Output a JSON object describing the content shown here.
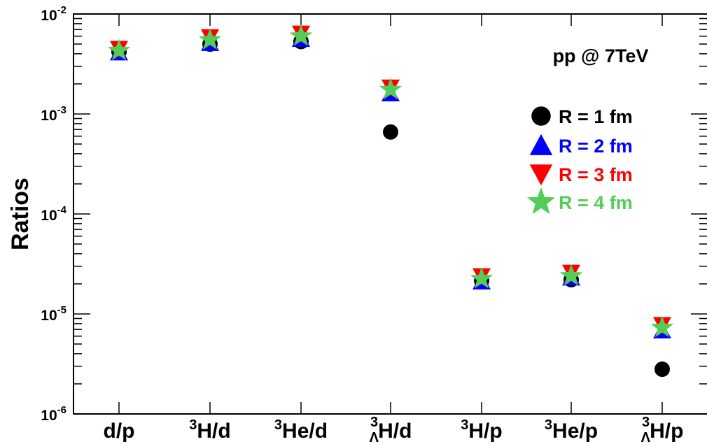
{
  "chart_data": {
    "type": "scatter",
    "title": "",
    "xlabel": "",
    "ylabel": "Ratios",
    "yscale": "log",
    "ylim": [
      1e-06,
      0.01
    ],
    "grid": false,
    "legend_position": "right",
    "annotation": "pp @ 7TeV",
    "categories": [
      {
        "pre": "",
        "sup": "",
        "sub": "",
        "main": "d/p"
      },
      {
        "pre": "",
        "sup": "3",
        "sub": "",
        "main": "H/d"
      },
      {
        "pre": "",
        "sup": "3",
        "sub": "",
        "main": "He/d"
      },
      {
        "pre": "",
        "sup": "3",
        "sub": "Λ",
        "main": "H/d"
      },
      {
        "pre": "",
        "sup": "3",
        "sub": "",
        "main": "H/p"
      },
      {
        "pre": "",
        "sup": "3",
        "sub": "",
        "main": "He/p"
      },
      {
        "pre": "",
        "sup": "3",
        "sub": "Λ",
        "main": "H/p"
      }
    ],
    "y_ticks": [
      {
        "value": 1e-06,
        "base": "10",
        "exp": "-6"
      },
      {
        "value": 1e-05,
        "base": "10",
        "exp": "-5"
      },
      {
        "value": 0.0001,
        "base": "10",
        "exp": "-4"
      },
      {
        "value": 0.001,
        "base": "10",
        "exp": "-3"
      },
      {
        "value": 0.01,
        "base": "10",
        "exp": "-2"
      }
    ],
    "series": [
      {
        "name": "R = 1 fm",
        "marker": "circle",
        "color": "#000000",
        "values": [
          0.0042,
          0.005,
          0.0053,
          0.00066,
          2.15e-05,
          2.2e-05,
          2.8e-06
        ]
      },
      {
        "name": "R = 2 fm",
        "marker": "triangle-up",
        "color": "#0000ff",
        "values": [
          0.0041,
          0.0051,
          0.0056,
          0.0016,
          2.1e-05,
          2.3e-05,
          6.8e-06
        ]
      },
      {
        "name": "R = 3 fm",
        "marker": "triangle-down",
        "color": "#ff0000",
        "values": [
          0.0045,
          0.0059,
          0.0064,
          0.00185,
          2.4e-05,
          2.6e-05,
          7.8e-06
        ]
      },
      {
        "name": "R = 4 fm",
        "marker": "star",
        "color": "#55cc55",
        "values": [
          0.0043,
          0.0055,
          0.006,
          0.00175,
          2.25e-05,
          2.4e-05,
          7.3e-06
        ]
      }
    ]
  }
}
